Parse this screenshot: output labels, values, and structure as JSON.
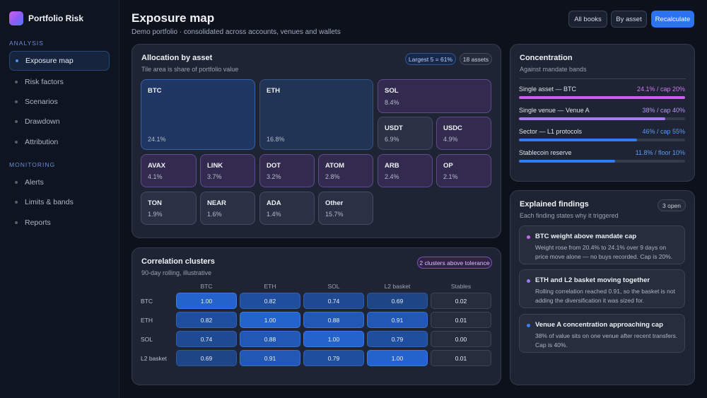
{
  "app": {
    "name": "Portfolio Risk"
  },
  "nav": {
    "sections": [
      {
        "label": "Analysis",
        "items": [
          "Exposure map",
          "Risk factors",
          "Scenarios",
          "Drawdown",
          "Attribution"
        ]
      },
      {
        "label": "Monitoring",
        "items": [
          "Alerts",
          "Limits & bands",
          "Reports"
        ]
      }
    ],
    "active": "Exposure map"
  },
  "header": {
    "title": "Exposure map",
    "subtitle": "Demo portfolio · consolidated across accounts, venues and wallets",
    "buttons": [
      "All books",
      "By asset",
      "Recalculate"
    ]
  },
  "allocation": {
    "title": "Allocation by asset",
    "subtitle": "Tile area is share of portfolio value",
    "badge_largest": "Largest 5 = 61%",
    "badge_count": "18 assets",
    "tiles": [
      {
        "name": "BTC",
        "value": "24.1%"
      },
      {
        "name": "ETH",
        "value": "16.8%"
      },
      {
        "name": "SOL",
        "value": "8.4%"
      },
      {
        "name": "USDT",
        "value": "6.9%"
      },
      {
        "name": "USDC",
        "value": "4.9%"
      },
      {
        "name": "AVAX",
        "value": "4.1%"
      },
      {
        "name": "LINK",
        "value": "3.7%"
      },
      {
        "name": "DOT",
        "value": "3.2%"
      },
      {
        "name": "ATOM",
        "value": "2.8%"
      },
      {
        "name": "ARB",
        "value": "2.4%"
      },
      {
        "name": "OP",
        "value": "2.1%"
      },
      {
        "name": "TON",
        "value": "1.9%"
      },
      {
        "name": "NEAR",
        "value": "1.6%"
      },
      {
        "name": "ADA",
        "value": "1.4%"
      },
      {
        "name": "Other",
        "value": "15.7%"
      }
    ]
  },
  "correlation": {
    "title": "Correlation clusters",
    "subtitle": "90-day rolling, illustrative",
    "badge": "2 clusters above tolerance",
    "columns": [
      "BTC",
      "ETH",
      "SOL",
      "L2 basket",
      "Stables"
    ],
    "rows": [
      {
        "label": "BTC",
        "values": [
          "1.00",
          "0.82",
          "0.74",
          "0.69",
          "0.02"
        ]
      },
      {
        "label": "ETH",
        "values": [
          "0.82",
          "1.00",
          "0.88",
          "0.91",
          "0.01"
        ]
      },
      {
        "label": "SOL",
        "values": [
          "0.74",
          "0.88",
          "1.00",
          "0.79",
          "0.00"
        ]
      },
      {
        "label": "L2 basket",
        "values": [
          "0.69",
          "0.91",
          "0.79",
          "1.00",
          "0.01"
        ]
      }
    ]
  },
  "concentration": {
    "title": "Concentration",
    "subtitle": "Against mandate bands",
    "rows": [
      {
        "label": "Single asset — BTC",
        "value": "24.1% / cap 20%",
        "fill": 1.0,
        "color": "#c760ea"
      },
      {
        "label": "Single venue — Venue A",
        "value": "38% / cap 40%",
        "fill": 0.88,
        "color": "#a57cf2"
      },
      {
        "label": "Sector — L1 protocols",
        "value": "46% / cap 55%",
        "fill": 0.71,
        "color": "#2f7df4"
      },
      {
        "label": "Stablecoin reserve",
        "value": "11.8% / floor 10%",
        "fill": 0.58,
        "color": "#2f7df4"
      }
    ]
  },
  "findings": {
    "title": "Explained findings",
    "subtitle": "Each finding states why it triggered",
    "badge": "3 open",
    "items": [
      {
        "title": "BTC weight above mandate cap",
        "body": "Weight rose from 20.4% to 24.1% over 9 days on price move alone — no buys recorded. Cap is 20%.",
        "color": "#c76aec"
      },
      {
        "title": "ETH and L2 basket moving together",
        "body": "Rolling correlation reached 0.91, so the basket is not adding the diversification it was sized for.",
        "color": "#9a7cf0"
      },
      {
        "title": "Venue A concentration approaching cap",
        "body": "38% of value sits on one venue after recent transfers. Cap is 40%.",
        "color": "#3a82f5"
      }
    ]
  }
}
